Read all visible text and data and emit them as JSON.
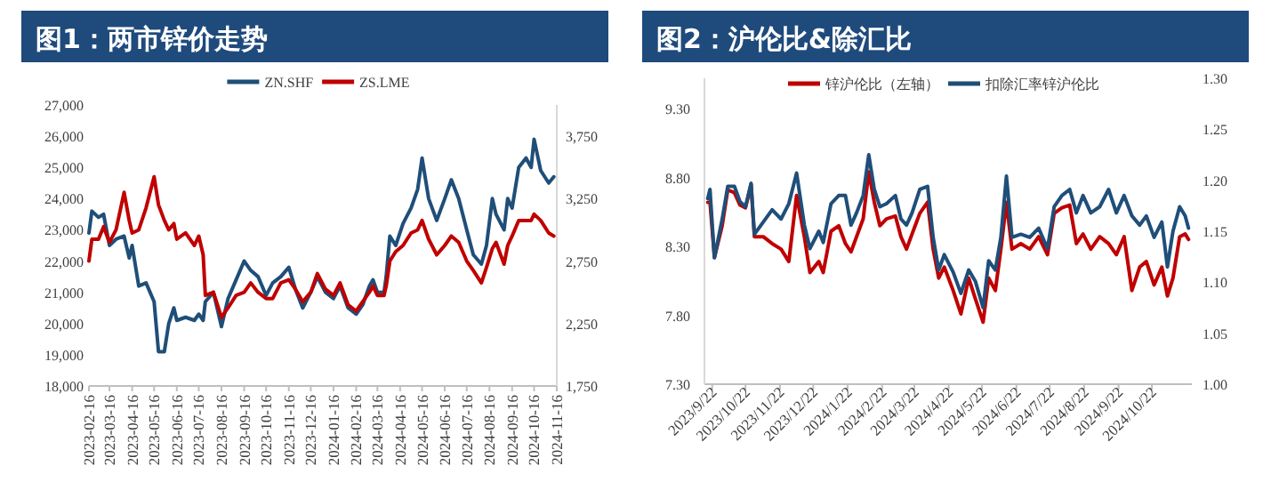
{
  "chart_data": [
    {
      "type": "line",
      "title": "图1：两市锌价走势",
      "legend": "top",
      "xlim": [
        "2023-02-16",
        "2024-11-16"
      ],
      "xticks": [
        "2023-02-16",
        "2023-03-16",
        "2023-04-16",
        "2023-05-16",
        "2023-06-16",
        "2023-07-16",
        "2023-08-16",
        "2023-09-16",
        "2023-10-16",
        "2023-11-16",
        "2023-12-16",
        "2024-01-16",
        "2024-02-16",
        "2024-03-16",
        "2024-04-16",
        "2024-05-16",
        "2024-06-16",
        "2024-07-16",
        "2024-08-16",
        "2024-09-16",
        "2024-10-16",
        "2024-11-16"
      ],
      "ylim": [
        18000,
        27000
      ],
      "yticks": [
        {
          "value": 18000,
          "label": "18,000"
        },
        {
          "value": 19000,
          "label": "19,000"
        },
        {
          "value": 20000,
          "label": "20,000"
        },
        {
          "value": 21000,
          "label": "21,000"
        },
        {
          "value": 22000,
          "label": "22,000"
        },
        {
          "value": 23000,
          "label": "23,000"
        },
        {
          "value": 24000,
          "label": "24,000"
        },
        {
          "value": 25000,
          "label": "25,000"
        },
        {
          "value": 26000,
          "label": "26,000"
        },
        {
          "value": 27000,
          "label": "27,000"
        }
      ],
      "y2lim": [
        1750,
        4000
      ],
      "y2ticks": [
        {
          "value": 1750,
          "label": "1,750"
        },
        {
          "value": 2250,
          "label": "2,250"
        },
        {
          "value": 2750,
          "label": "2,750"
        },
        {
          "value": 3250,
          "label": "3,250"
        },
        {
          "value": 3750,
          "label": "3,750"
        }
      ],
      "x": [
        "2023-02-16",
        "2023-02-20",
        "2023-03-01",
        "2023-03-08",
        "2023-03-16",
        "2023-03-25",
        "2023-04-05",
        "2023-04-12",
        "2023-04-16",
        "2023-04-25",
        "2023-05-05",
        "2023-05-16",
        "2023-05-22",
        "2023-05-30",
        "2023-06-05",
        "2023-06-12",
        "2023-06-16",
        "2023-06-28",
        "2023-07-10",
        "2023-07-16",
        "2023-07-22",
        "2023-07-25",
        "2023-08-05",
        "2023-08-16",
        "2023-08-25",
        "2023-09-05",
        "2023-09-16",
        "2023-09-25",
        "2023-10-05",
        "2023-10-16",
        "2023-10-25",
        "2023-11-05",
        "2023-11-16",
        "2023-11-25",
        "2023-12-05",
        "2023-12-16",
        "2023-12-25",
        "2024-01-05",
        "2024-01-16",
        "2024-01-25",
        "2024-02-05",
        "2024-02-16",
        "2024-02-25",
        "2024-03-05",
        "2024-03-10",
        "2024-03-16",
        "2024-03-25",
        "2024-03-28",
        "2024-04-02",
        "2024-04-10",
        "2024-04-20",
        "2024-05-01",
        "2024-05-10",
        "2024-05-16",
        "2024-05-25",
        "2024-06-05",
        "2024-06-16",
        "2024-06-25",
        "2024-07-05",
        "2024-07-16",
        "2024-07-25",
        "2024-08-05",
        "2024-08-12",
        "2024-08-20",
        "2024-08-25",
        "2024-09-05",
        "2024-09-10",
        "2024-09-16",
        "2024-09-25",
        "2024-10-05",
        "2024-10-12",
        "2024-10-16",
        "2024-10-25",
        "2024-11-05",
        "2024-11-12"
      ],
      "series": [
        {
          "name": "ZN.SHF",
          "color": "#1f4e79",
          "values": [
            22900,
            23600,
            23400,
            23500,
            22500,
            22700,
            22800,
            22100,
            22500,
            21200,
            21300,
            20700,
            19100,
            19100,
            20000,
            20500,
            20100,
            20200,
            20100,
            20300,
            20100,
            20700,
            21000,
            19900,
            20800,
            21400,
            22000,
            21700,
            21500,
            20900,
            21300,
            21500,
            21800,
            21100,
            20500,
            21000,
            21500,
            21000,
            20800,
            21200,
            20500,
            20300,
            20600,
            21200,
            21400,
            21000,
            21000,
            21500,
            22800,
            22500,
            23200,
            23700,
            24300,
            25300,
            24000,
            23300,
            24000,
            24600,
            24000,
            23000,
            22200,
            21900,
            22500,
            24000,
            23500,
            23000,
            24000,
            23700,
            25000,
            25300,
            25000,
            25900,
            24900,
            24500,
            24700
          ]
        },
        {
          "name": "ZS.LME",
          "color": "#c00000",
          "axis": "y2",
          "values": [
            2750,
            2925,
            2925,
            3025,
            2900,
            3000,
            3300,
            3075,
            2975,
            3000,
            3175,
            3425,
            3200,
            3075,
            3000,
            3050,
            2925,
            2975,
            2875,
            2950,
            2800,
            2475,
            2500,
            2300,
            2375,
            2475,
            2500,
            2575,
            2500,
            2450,
            2450,
            2575,
            2600,
            2525,
            2425,
            2500,
            2650,
            2525,
            2475,
            2575,
            2400,
            2350,
            2425,
            2500,
            2550,
            2475,
            2475,
            2550,
            2750,
            2825,
            2875,
            2975,
            3000,
            3075,
            2925,
            2800,
            2875,
            2950,
            2900,
            2750,
            2675,
            2575,
            2700,
            2850,
            2900,
            2725,
            2875,
            2950,
            3075,
            3075,
            3075,
            3125,
            3075,
            2975,
            2950
          ]
        }
      ]
    },
    {
      "type": "line",
      "title": "图2：沪伦比&除汇比",
      "legend": "top",
      "xlim": [
        "2023-09-15",
        "2024-11-27"
      ],
      "xticks": [
        {
          "value": "2023-09-22",
          "label": "2023/9/22"
        },
        {
          "value": "2023-10-22",
          "label": "2023/10/22"
        },
        {
          "value": "2023-11-22",
          "label": "2023/11/22"
        },
        {
          "value": "2023-12-22",
          "label": "2023/12/22"
        },
        {
          "value": "2024-01-22",
          "label": "2024/1/22"
        },
        {
          "value": "2024-02-22",
          "label": "2024/2/22"
        },
        {
          "value": "2024-03-22",
          "label": "2024/3/22"
        },
        {
          "value": "2024-04-22",
          "label": "2024/4/22"
        },
        {
          "value": "2024-05-22",
          "label": "2024/5/22"
        },
        {
          "value": "2024-06-22",
          "label": "2024/6/22"
        },
        {
          "value": "2024-07-22",
          "label": "2024/7/22"
        },
        {
          "value": "2024-08-22",
          "label": "2024/8/22"
        },
        {
          "value": "2024-09-22",
          "label": "2024/9/22"
        },
        {
          "value": "2024-10-22",
          "label": "2024/10/22"
        }
      ],
      "ylim": [
        7.3,
        9.52
      ],
      "yticks": [
        {
          "value": 7.3,
          "label": "7.30"
        },
        {
          "value": 7.8,
          "label": "7.80"
        },
        {
          "value": 8.3,
          "label": "8.30"
        },
        {
          "value": 8.8,
          "label": "8.80"
        },
        {
          "value": 9.3,
          "label": "9.30"
        }
      ],
      "y2lim": [
        1.0,
        1.3
      ],
      "y2ticks": [
        {
          "value": 1.0,
          "label": "1.00"
        },
        {
          "value": 1.05,
          "label": "1.05"
        },
        {
          "value": 1.1,
          "label": "1.10"
        },
        {
          "value": 1.15,
          "label": "1.15"
        },
        {
          "value": 1.2,
          "label": "1.20"
        },
        {
          "value": 1.25,
          "label": "1.25"
        },
        {
          "value": 1.3,
          "label": "1.30"
        }
      ],
      "x": [
        "2023-09-18",
        "2023-09-20",
        "2023-09-24",
        "2023-10-01",
        "2023-10-06",
        "2023-10-12",
        "2023-10-17",
        "2023-10-22",
        "2023-10-27",
        "2023-10-30",
        "2023-11-07",
        "2023-11-15",
        "2023-11-23",
        "2023-11-30",
        "2023-12-07",
        "2023-12-14",
        "2023-12-19",
        "2023-12-27",
        "2023-12-31",
        "2024-01-07",
        "2024-01-14",
        "2024-01-20",
        "2024-01-25",
        "2024-01-30",
        "2024-02-05",
        "2024-02-10",
        "2024-02-15",
        "2024-02-20",
        "2024-02-26",
        "2024-03-05",
        "2024-03-10",
        "2024-03-15",
        "2024-03-20",
        "2024-03-27",
        "2024-04-03",
        "2024-04-08",
        "2024-04-13",
        "2024-04-18",
        "2024-04-26",
        "2024-05-03",
        "2024-05-10",
        "2024-05-16",
        "2024-05-23",
        "2024-05-28",
        "2024-06-03",
        "2024-06-08",
        "2024-06-13",
        "2024-06-18",
        "2024-06-26",
        "2024-07-04",
        "2024-07-12",
        "2024-07-20",
        "2024-07-26",
        "2024-08-02",
        "2024-08-09",
        "2024-08-15",
        "2024-08-21",
        "2024-08-28",
        "2024-09-05",
        "2024-09-13",
        "2024-09-20",
        "2024-09-27",
        "2024-10-04",
        "2024-10-11",
        "2024-10-17",
        "2024-10-24",
        "2024-10-31",
        "2024-11-05",
        "2024-11-10",
        "2024-11-16",
        "2024-11-21",
        "2024-11-24"
      ],
      "series": [
        {
          "name": "锌沪伦比（左轴）",
          "color": "#c00000",
          "values": [
            8.62,
            8.62,
            8.22,
            8.45,
            8.71,
            8.69,
            8.6,
            8.58,
            8.75,
            8.37,
            8.37,
            8.32,
            8.28,
            8.19,
            8.67,
            8.37,
            8.11,
            8.19,
            8.11,
            8.41,
            8.45,
            8.32,
            8.26,
            8.37,
            8.5,
            8.84,
            8.62,
            8.45,
            8.5,
            8.52,
            8.37,
            8.28,
            8.39,
            8.54,
            8.62,
            8.28,
            8.07,
            8.15,
            7.98,
            7.81,
            8.07,
            7.92,
            7.75,
            8.07,
            7.98,
            8.28,
            8.62,
            8.28,
            8.32,
            8.28,
            8.37,
            8.24,
            8.54,
            8.58,
            8.6,
            8.32,
            8.39,
            8.28,
            8.37,
            8.32,
            8.24,
            8.37,
            7.98,
            8.15,
            8.19,
            8.02,
            8.15,
            7.94,
            8.07,
            8.37,
            8.39,
            8.35
          ]
        },
        {
          "name": "扣除汇率锌沪伦比",
          "color": "#1f4e79",
          "axis": "y2",
          "values": [
            1.182,
            1.191,
            1.124,
            1.162,
            1.194,
            1.194,
            1.179,
            1.174,
            1.197,
            1.147,
            1.159,
            1.171,
            1.162,
            1.177,
            1.207,
            1.156,
            1.133,
            1.15,
            1.139,
            1.177,
            1.185,
            1.185,
            1.156,
            1.168,
            1.185,
            1.225,
            1.191,
            1.174,
            1.177,
            1.185,
            1.162,
            1.156,
            1.168,
            1.191,
            1.194,
            1.144,
            1.112,
            1.127,
            1.11,
            1.089,
            1.112,
            1.101,
            1.075,
            1.121,
            1.112,
            1.144,
            1.204,
            1.144,
            1.147,
            1.144,
            1.153,
            1.133,
            1.174,
            1.185,
            1.191,
            1.168,
            1.185,
            1.168,
            1.174,
            1.191,
            1.168,
            1.185,
            1.165,
            1.156,
            1.165,
            1.144,
            1.159,
            1.115,
            1.15,
            1.174,
            1.165,
            1.153
          ]
        }
      ]
    }
  ]
}
